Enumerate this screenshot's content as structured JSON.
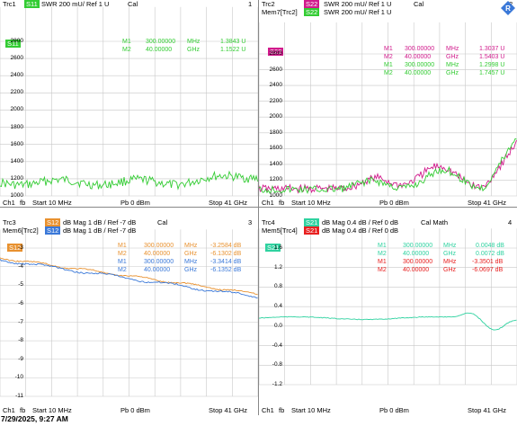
{
  "timestamp": "7/29/2025, 9:27 AM",
  "colors": {
    "trace_green": "#33cc33",
    "trace_magenta": "#d11a8c",
    "trace_orange": "#e8912f",
    "trace_blue": "#3a78d8",
    "trace_red": "#e82020",
    "trace_teal": "#2fd2a0",
    "grid": "#c8c8c8"
  },
  "windows": [
    {
      "number": "1",
      "trc": "Trc1",
      "traces": [
        {
          "tag": "S11",
          "desc": "SWR  200 mU/  Ref 1 U",
          "status": "Cal",
          "color": "#33cc33"
        }
      ],
      "mem_label": "",
      "active_tag": "S11",
      "markers": [
        {
          "name": "M1",
          "freq": "300.00000",
          "unit": "MHz",
          "value": "1.3843 U"
        },
        {
          "name": "M2",
          "freq": "40.00000",
          "unit": "GHz",
          "value": "1.1522 U"
        }
      ],
      "yticks": [
        "2800",
        "2600",
        "2400",
        "2200",
        "2000",
        "1800",
        "1600",
        "1400",
        "1200",
        "1000"
      ],
      "footer": {
        "ch": "Ch1",
        "fb": "fb",
        "start": "Start  10 MHz",
        "pb": "Pb  0 dBm",
        "stop": "Stop  41 GHz"
      },
      "plot_markers": [
        {
          "label": "M1",
          "side": "left"
        },
        {
          "label": "M2",
          "side": "right"
        }
      ]
    },
    {
      "number": "2",
      "trc": "Trc2",
      "traces": [
        {
          "tag": "S22",
          "desc": "SWR  200 mU/  Ref 1 U",
          "status": "Cal",
          "color": "#d11a8c"
        },
        {
          "tag": "S22",
          "desc": "SWR  200 mU/  Ref 1 U",
          "status": "",
          "color": "#33cc33"
        }
      ],
      "mem_label": "Mem7[Trc2]",
      "active_tag": "S22",
      "markers": [
        {
          "name": "M1",
          "freq": "300.00000",
          "unit": "MHz",
          "value": "1.3037 U"
        },
        {
          "name": "M2",
          "freq": "40.00000",
          "unit": "GHz",
          "value": "1.5403 U"
        },
        {
          "name": "M1",
          "freq": "300.00000",
          "unit": "MHz",
          "value": "1.2998 U"
        },
        {
          "name": "M2",
          "freq": "40.00000",
          "unit": "GHz",
          "value": "1.7457 U"
        }
      ],
      "yticks": [
        "2800",
        "2600",
        "2400",
        "2200",
        "2000",
        "1800",
        "1600",
        "1400",
        "1200",
        "1000"
      ],
      "footer": {
        "ch": "Ch1",
        "fb": "fb",
        "start": "Start  10 MHz",
        "pb": "Pb  0 dBm",
        "stop": "Stop  41 GHz"
      },
      "plot_markers": [
        {
          "label": "M1",
          "side": "left"
        },
        {
          "label": "M2",
          "side": "right"
        }
      ]
    },
    {
      "number": "3",
      "trc": "Trc3",
      "traces": [
        {
          "tag": "S12",
          "desc": "dB Mag  1 dB /  Ref -7 dB",
          "status": "Cal",
          "color": "#e8912f"
        },
        {
          "tag": "S12",
          "desc": "dB Mag  1 dB /  Ref -7 dB",
          "status": "",
          "color": "#3a78d8"
        }
      ],
      "mem_label": "Mem6[Trc2]",
      "active_tag": "S12",
      "markers": [
        {
          "name": "M1",
          "freq": "300.00000",
          "unit": "MHz",
          "value": "-3.2584  dB"
        },
        {
          "name": "M2",
          "freq": "40.00000",
          "unit": "GHz",
          "value": "-6.1302  dB"
        },
        {
          "name": "M1",
          "freq": "300.00000",
          "unit": "MHz",
          "value": "-3.3414  dB"
        },
        {
          "name": "M2",
          "freq": "40.00000",
          "unit": "GHz",
          "value": "-6.1352  dB"
        }
      ],
      "yticks": [
        "-3",
        "-4",
        "-5",
        "-6",
        "-7",
        "-8",
        "-9",
        "-10",
        "-11"
      ],
      "footer": {
        "ch": "Ch1",
        "fb": "fb",
        "start": "Start  10 MHz",
        "pb": "Pb  0 dBm",
        "stop": "Stop  41 GHz"
      },
      "plot_markers": [
        {
          "label": "M1",
          "side": "left"
        },
        {
          "label": "M2",
          "side": "right"
        }
      ]
    },
    {
      "number": "4",
      "trc": "Trc4",
      "traces": [
        {
          "tag": "S21",
          "desc": "dB Mag  0.4 dB /  Ref 0 dB",
          "status": "Cal Math",
          "color": "#2fd2a0"
        },
        {
          "tag": "S21",
          "desc": "dB Mag  0.4 dB /  Ref 0 dB",
          "status": "",
          "color": "#e82020"
        }
      ],
      "mem_label": "Mem5[Trc4]",
      "active_tag": "S21",
      "markers": [
        {
          "name": "M1",
          "freq": "300.00000",
          "unit": "MHz",
          "value": "0.0048  dB"
        },
        {
          "name": "M2",
          "freq": "40.00000",
          "unit": "GHz",
          "value": "0.0072  dB"
        },
        {
          "name": "M1",
          "freq": "300.00000",
          "unit": "MHz",
          "value": "-3.3501  dB"
        },
        {
          "name": "M2",
          "freq": "40.00000",
          "unit": "GHz",
          "value": "-6.0697  dB"
        }
      ],
      "yticks": [
        "1.6",
        "1.2",
        "0.8",
        "0.4",
        "0.0",
        "-0.4",
        "-0.8",
        "-1.2"
      ],
      "footer": {
        "ch": "Ch1",
        "fb": "fb",
        "start": "Start  10 MHz",
        "pb": "Pb  0 dBm",
        "stop": "Stop  41 GHz"
      },
      "plot_markers": [
        {
          "label": "M1",
          "side": "left"
        },
        {
          "label": "M2",
          "side": "right"
        }
      ]
    }
  ]
}
